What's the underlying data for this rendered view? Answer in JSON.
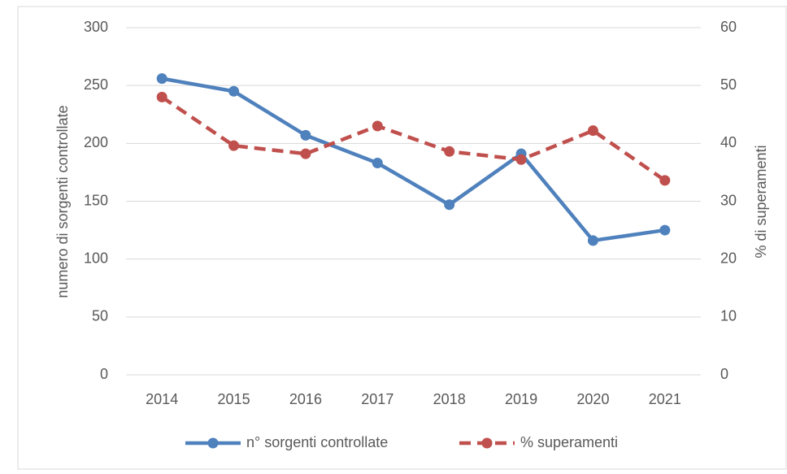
{
  "chart_data": {
    "type": "line",
    "categories": [
      "2014",
      "2015",
      "2016",
      "2017",
      "2018",
      "2019",
      "2020",
      "2021"
    ],
    "series": [
      {
        "name": "n° sorgenti controllate",
        "color": "#4f81bd",
        "dash": false,
        "values": [
          256,
          245,
          207,
          183,
          147,
          191,
          116,
          125
        ]
      },
      {
        "name": "% superamenti",
        "color": "#c0504d",
        "dash": true,
        "axis": "y2",
        "values": [
          48,
          39.6,
          38.2,
          43,
          38.6,
          37.2,
          42.2,
          33.6
        ]
      }
    ],
    "ylabel": "numero di sorgenti controllate",
    "y2label": "% di superamenti",
    "ylim": [
      0,
      300
    ],
    "yticks": [
      0,
      50,
      100,
      150,
      200,
      250,
      300
    ],
    "y2lim": [
      0,
      60
    ],
    "y2ticks": [
      0,
      10,
      20,
      30,
      40,
      50,
      60
    ],
    "grid": true,
    "legend": "bottom"
  }
}
